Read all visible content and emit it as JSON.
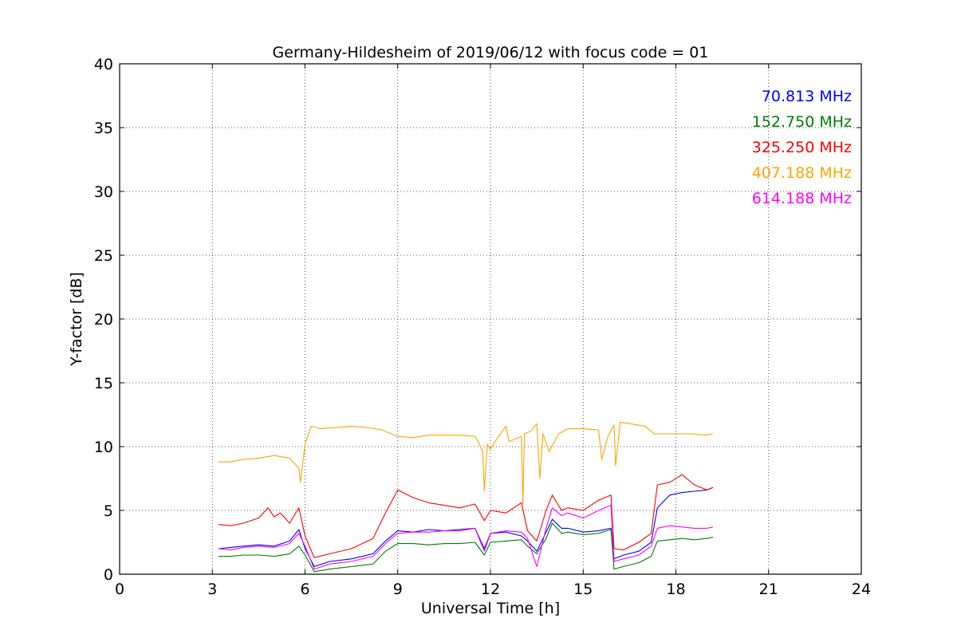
{
  "chart_data": {
    "type": "line",
    "title": "Germany-Hildesheim of 2019/06/12 with focus code = 01",
    "xlabel": "Universal Time [h]",
    "ylabel": "Y-factor [dB]",
    "xlim": [
      0,
      24
    ],
    "ylim": [
      0,
      40
    ],
    "xticks": [
      0,
      3,
      6,
      9,
      12,
      15,
      18,
      21,
      24
    ],
    "yticks": [
      0,
      5,
      10,
      15,
      20,
      25,
      30,
      35,
      40
    ],
    "grid": true,
    "legend_position": "top-right",
    "series": [
      {
        "name": "70.813 MHz",
        "color": "#0000ff",
        "x": [
          3.2,
          3.6,
          4.0,
          4.5,
          5.0,
          5.5,
          5.8,
          6.0,
          6.3,
          6.8,
          7.5,
          8.2,
          8.6,
          9.0,
          9.5,
          10.0,
          10.5,
          11.0,
          11.5,
          11.8,
          12.0,
          12.5,
          13.0,
          13.2,
          13.5,
          13.8,
          14.0,
          14.3,
          14.5,
          15.0,
          15.5,
          15.9,
          16.0,
          16.3,
          16.8,
          17.2,
          17.4,
          17.8,
          18.2,
          18.6,
          19.0,
          19.2
        ],
        "y": [
          2.0,
          2.1,
          2.2,
          2.3,
          2.2,
          2.6,
          3.5,
          2.0,
          0.6,
          1.0,
          1.2,
          1.6,
          2.6,
          3.4,
          3.3,
          3.5,
          3.4,
          3.5,
          3.6,
          2.0,
          3.2,
          3.3,
          3.0,
          2.6,
          1.8,
          3.3,
          4.3,
          3.6,
          3.6,
          3.3,
          3.4,
          3.6,
          1.2,
          1.5,
          1.8,
          2.5,
          5.2,
          6.2,
          6.4,
          6.5,
          6.6,
          6.8
        ]
      },
      {
        "name": "152.750 MHz",
        "color": "#007f00",
        "x": [
          3.2,
          3.6,
          4.0,
          4.5,
          5.0,
          5.5,
          5.8,
          6.0,
          6.3,
          6.8,
          7.5,
          8.2,
          8.6,
          9.0,
          9.5,
          10.0,
          10.5,
          11.0,
          11.5,
          11.8,
          12.0,
          12.5,
          13.0,
          13.2,
          13.5,
          13.8,
          14.0,
          14.3,
          14.5,
          15.0,
          15.5,
          15.9,
          16.0,
          16.3,
          16.8,
          17.2,
          17.4,
          17.8,
          18.2,
          18.6,
          19.0,
          19.2
        ],
        "y": [
          1.4,
          1.4,
          1.5,
          1.5,
          1.4,
          1.6,
          2.2,
          1.5,
          0.2,
          0.4,
          0.6,
          0.8,
          1.8,
          2.4,
          2.4,
          2.3,
          2.4,
          2.4,
          2.5,
          1.5,
          2.5,
          2.6,
          2.7,
          2.2,
          1.6,
          2.8,
          4.0,
          3.2,
          3.3,
          3.1,
          3.2,
          3.5,
          0.4,
          0.6,
          0.9,
          1.4,
          2.6,
          2.7,
          2.8,
          2.7,
          2.8,
          2.9
        ]
      },
      {
        "name": "325.250 MHz",
        "color": "#ff0000",
        "x": [
          3.2,
          3.6,
          4.0,
          4.5,
          4.8,
          5.0,
          5.2,
          5.5,
          5.8,
          6.0,
          6.3,
          6.8,
          7.5,
          8.2,
          8.6,
          9.0,
          9.5,
          10.0,
          10.5,
          11.0,
          11.5,
          11.8,
          12.0,
          12.5,
          13.0,
          13.2,
          13.5,
          13.8,
          14.0,
          14.3,
          14.5,
          15.0,
          15.5,
          15.9,
          16.0,
          16.3,
          16.8,
          17.2,
          17.4,
          17.8,
          18.2,
          18.6,
          19.0,
          19.2
        ],
        "y": [
          3.9,
          3.8,
          4.0,
          4.4,
          5.2,
          4.5,
          4.8,
          4.0,
          5.2,
          3.0,
          1.3,
          1.6,
          2.0,
          2.8,
          4.8,
          6.6,
          6.0,
          5.6,
          5.4,
          5.2,
          5.5,
          4.2,
          5.0,
          4.8,
          5.6,
          3.4,
          2.6,
          5.0,
          6.2,
          5.0,
          5.2,
          5.0,
          5.8,
          6.2,
          2.0,
          1.9,
          2.5,
          3.2,
          7.0,
          7.2,
          7.8,
          7.0,
          6.6,
          6.8
        ]
      },
      {
        "name": "407.188 MHz",
        "color": "#ffa500",
        "x": [
          3.2,
          3.6,
          4.0,
          4.5,
          5.0,
          5.5,
          5.8,
          5.85,
          6.0,
          6.2,
          6.5,
          7.0,
          7.5,
          8.0,
          8.5,
          9.0,
          9.5,
          10.0,
          10.5,
          11.0,
          11.5,
          11.6,
          11.75,
          11.8,
          11.9,
          12.0,
          12.2,
          12.5,
          12.6,
          12.8,
          13.0,
          13.05,
          13.1,
          13.3,
          13.5,
          13.6,
          13.7,
          13.9,
          14.2,
          14.5,
          15.0,
          15.5,
          15.6,
          15.8,
          16.0,
          16.05,
          16.2,
          16.5,
          17.0,
          17.3,
          17.6,
          18.0,
          18.5,
          19.0,
          19.2
        ],
        "y": [
          8.8,
          8.8,
          9.0,
          9.1,
          9.3,
          9.1,
          8.3,
          7.2,
          10.2,
          11.6,
          11.4,
          11.5,
          11.6,
          11.5,
          11.3,
          10.8,
          10.7,
          10.9,
          10.9,
          10.9,
          10.8,
          10.4,
          9.6,
          6.5,
          10.2,
          9.8,
          10.6,
          11.6,
          10.4,
          10.6,
          10.8,
          5.5,
          11.0,
          11.2,
          11.8,
          7.5,
          11.0,
          9.6,
          11.0,
          11.4,
          11.4,
          11.3,
          9.0,
          10.8,
          11.7,
          8.5,
          11.9,
          11.8,
          11.6,
          11.0,
          11.0,
          11.0,
          11.0,
          10.9,
          11.0
        ]
      },
      {
        "name": "614.188 MHz",
        "color": "#ff00ff",
        "x": [
          3.2,
          3.6,
          4.0,
          4.5,
          5.0,
          5.5,
          5.8,
          6.0,
          6.3,
          6.8,
          7.5,
          8.2,
          8.6,
          9.0,
          9.5,
          10.0,
          10.5,
          11.0,
          11.5,
          11.8,
          12.0,
          12.5,
          13.0,
          13.2,
          13.5,
          13.8,
          14.0,
          14.3,
          14.5,
          15.0,
          15.5,
          15.9,
          16.0,
          16.3,
          16.8,
          17.2,
          17.4,
          17.8,
          18.2,
          18.6,
          19.0,
          19.2
        ],
        "y": [
          2.0,
          1.9,
          2.1,
          2.2,
          2.1,
          2.4,
          3.2,
          2.2,
          0.4,
          0.8,
          1.0,
          1.4,
          2.4,
          3.2,
          3.3,
          3.3,
          3.4,
          3.4,
          3.6,
          1.8,
          3.2,
          3.4,
          3.3,
          2.8,
          0.6,
          3.6,
          5.2,
          4.6,
          4.8,
          4.4,
          5.0,
          5.4,
          1.0,
          1.2,
          1.5,
          2.2,
          3.6,
          3.8,
          3.7,
          3.6,
          3.6,
          3.7
        ]
      }
    ]
  }
}
